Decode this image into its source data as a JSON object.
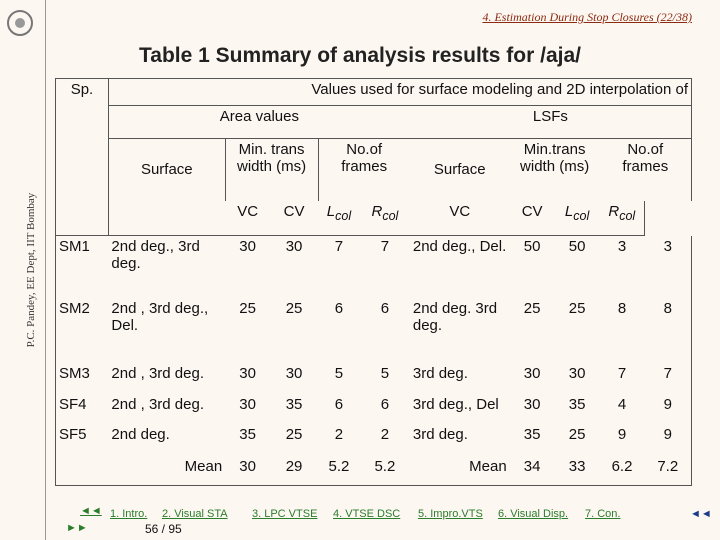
{
  "sidebar": {
    "author": "P.C. Pandey, EE Dept, IIT Bombay"
  },
  "header": {
    "section": "4. Estimation During Stop Closures (22/38)",
    "title": "Table 1 Summary of analysis results for /aja/"
  },
  "table": {
    "head": {
      "sp": "Sp.",
      "caption": "Values used for surface modeling and 2D interpolation of",
      "area": "Area values",
      "lsf": "LSFs",
      "area_surface": "Surface",
      "area_trans": "Min. trans width (ms)",
      "area_frames": "No.of frames",
      "lsf_surface": "Surface",
      "lsf_trans": "Min.trans width (ms)",
      "lsf_frames": "No.of frames",
      "cols": [
        {
          "main": "VC"
        },
        {
          "main": "CV"
        },
        {
          "main": "L",
          "sub": "col"
        },
        {
          "main": "R",
          "sub": "col"
        },
        {
          "main": "VC"
        },
        {
          "main": "CV"
        },
        {
          "main": "L",
          "sub": "col"
        },
        {
          "main": "R",
          "sub": "col"
        }
      ]
    },
    "rows": [
      {
        "sp": "SM1",
        "area": [
          "2nd deg., 3rd deg.",
          30,
          30,
          7,
          7
        ],
        "lsf": [
          "2nd deg., Del.",
          50,
          50,
          3,
          3
        ]
      },
      {
        "sp": "SM2",
        "area": [
          "2nd , 3rd deg., Del.",
          25,
          25,
          6,
          6
        ],
        "lsf": [
          "2nd deg. 3rd deg.",
          25,
          25,
          8,
          8
        ]
      },
      {
        "sp": "SM3",
        "area": [
          "2nd , 3rd deg.",
          30,
          30,
          5,
          5
        ],
        "lsf": [
          "3rd deg.",
          30,
          30,
          7,
          7
        ]
      },
      {
        "sp": "SF4",
        "area": [
          "2nd , 3rd deg.",
          30,
          35,
          6,
          6
        ],
        "lsf": [
          "3rd deg., Del",
          30,
          35,
          4,
          9
        ]
      },
      {
        "sp": "SF5",
        "area": [
          "2nd deg.",
          35,
          25,
          2,
          2
        ],
        "lsf": [
          "3rd deg.",
          35,
          25,
          9,
          9
        ]
      },
      {
        "area": [
          "Mean",
          30,
          29,
          5.2,
          5.2
        ],
        "lsf": [
          "Mean",
          34,
          33,
          6.2,
          7.2
        ]
      }
    ]
  },
  "footer": {
    "prev": "◄◄",
    "next": "►►",
    "links": [
      "1. Intro.",
      "2. Visual STA",
      "3. LPC VTSE",
      "4. VTSE DSC",
      "5. Impro.VTS",
      "6. Visual Disp.",
      "7. Con."
    ],
    "back": "◄◄",
    "page": "56 / 95"
  }
}
